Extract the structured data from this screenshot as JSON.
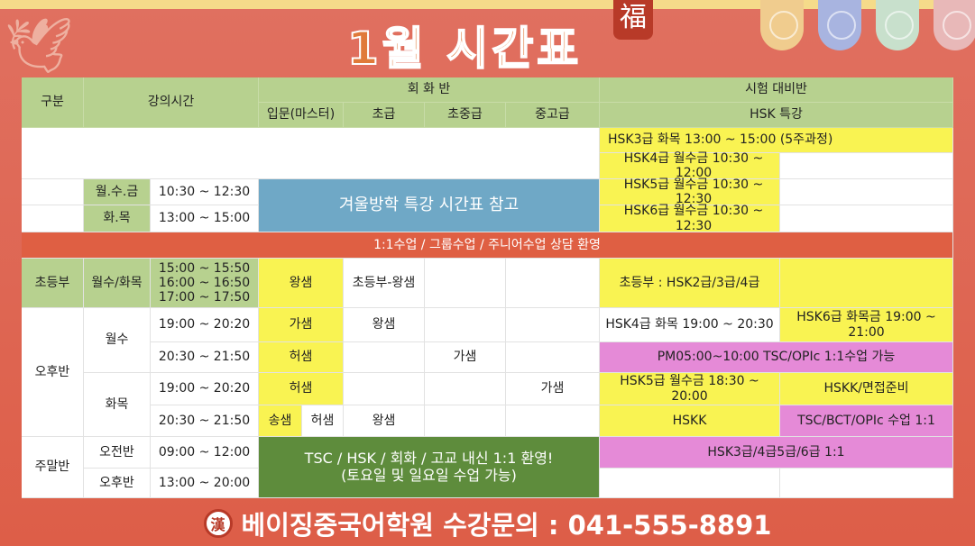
{
  "header": {
    "title": "1월 시간표",
    "badge": "福"
  },
  "colors": {
    "header_green": "#b7d18f",
    "yellow": "#f9f352",
    "pink": "#e58ad7",
    "blue": "#6fa8c6",
    "dark_green": "#5e8c3c",
    "banner": "#df5f43"
  },
  "table": {
    "head": {
      "category": "구분",
      "time": "강의시간",
      "conversation": "회 화 반",
      "exam": "시험 대비반",
      "intro": "입문(마스터)",
      "beginner": "초급",
      "pre_inter": "초중급",
      "inter_adv": "중고급",
      "hsk": "HSK 특강"
    },
    "r1": {
      "hsk": "HSK3급 화목 13:00 ~ 15:00 (5주과정)"
    },
    "r2": {
      "hsk": "HSK4급 월수금 10:30 ~ 12:00"
    },
    "r3": {
      "day": "월.수.금",
      "time": "10:30 ~ 12:30",
      "winter": "겨울방학 특강 시간표 참고",
      "hsk": "HSK5급 월수금 10:30 ~ 12:30"
    },
    "r4": {
      "day": "화.목",
      "time": "13:00 ~ 15:00",
      "hsk": "HSK6급 월수금 10:30 ~ 12:30"
    },
    "banner": "1:1수업 / 그룹수업 / 주니어수업 상담 환영",
    "elem": {
      "cat": "초등부",
      "day": "월수/화목",
      "time1": "15:00 ~ 15:50",
      "time2": "16:00 ~ 16:50",
      "time3": "17:00 ~ 17:50",
      "intro": "왕샘",
      "beginner": "초등부-왕샘",
      "hsk": "초등부 : HSK2급/3급/4급"
    },
    "pm": {
      "cat": "오후반",
      "mw": "월수",
      "tt": "화목",
      "a": {
        "time": "19:00 ~ 20:20",
        "intro": "가샘",
        "beginner": "왕샘",
        "hsk1": "HSK4급 화목 19:00 ~ 20:30",
        "hsk2": "HSK6급 화목금 19:00 ~ 21:00"
      },
      "b": {
        "time": "20:30 ~ 21:50",
        "intro": "허샘",
        "pre_inter": "가샘",
        "hsk": "PM05:00~10:00 TSC/OPIc 1:1수업 가능"
      },
      "c": {
        "time": "19:00 ~ 20:20",
        "intro": "허샘",
        "inter_adv": "가샘",
        "hsk1": "HSK5급 월수금 18:30 ~ 20:00",
        "hsk2": "HSKK/면접준비"
      },
      "d": {
        "time": "20:30 ~ 21:50",
        "intro1": "송샘",
        "intro2": "허샘",
        "beginner": "왕샘",
        "hsk1": "HSKK",
        "hsk2": "TSC/BCT/OPIc 수업 1:1"
      }
    },
    "weekend": {
      "cat": "주말반",
      "am": "오전반",
      "am_time": "09:00 ~ 12:00",
      "pm": "오후반",
      "pm_time": "13:00 ~ 20:00",
      "promo1": "TSC / HSK / 회화 / 고교 내신 1:1 환영!",
      "promo2": "(토요일 및 일요일 수업 가능)",
      "hsk": "HSK3급/4급5급/6급 1:1"
    }
  },
  "footer": {
    "contact": "베이징중국어학원 수강문의 : 041-555-8891"
  }
}
